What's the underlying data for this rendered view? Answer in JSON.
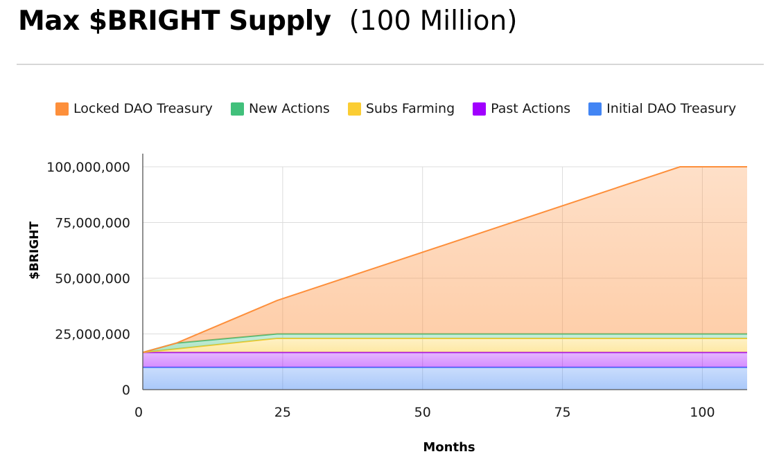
{
  "header": {
    "title": "Max $BRIGHT Supply",
    "subtitle": "(100 Million)"
  },
  "chart_data": {
    "type": "area",
    "stacked": true,
    "xlabel": "Months",
    "ylabel": "$BRIGHT",
    "xlim": [
      0,
      108
    ],
    "ylim": [
      0,
      100000000
    ],
    "x_ticks": [
      "0",
      "25",
      "50",
      "75",
      "100"
    ],
    "y_ticks": [
      "0",
      "25,000,000",
      "50,000,000",
      "75,000,000",
      "100,000,000"
    ],
    "grid": true,
    "legend_position": "top",
    "series": [
      {
        "name": "Initial DAO Treasury",
        "color": "#4285f4",
        "points": [
          [
            0,
            10000000
          ],
          [
            108,
            10000000
          ]
        ]
      },
      {
        "name": "Past Actions",
        "color": "#a100ff",
        "points": [
          [
            0,
            6700000
          ],
          [
            108,
            6700000
          ]
        ]
      },
      {
        "name": "Subs Farming",
        "color": "#fbcd33",
        "points": [
          [
            0,
            0
          ],
          [
            24,
            6300000
          ],
          [
            108,
            6300000
          ]
        ]
      },
      {
        "name": "New Actions",
        "color": "#41c07b",
        "points": [
          [
            0,
            0
          ],
          [
            6,
            2600000
          ],
          [
            24,
            2000000
          ],
          [
            108,
            2000000
          ]
        ]
      },
      {
        "name": "Locked DAO Treasury",
        "color": "#fd8f3b",
        "points": [
          [
            0,
            0
          ],
          [
            6,
            0
          ],
          [
            24,
            15000000
          ],
          [
            96,
            75000000
          ],
          [
            108,
            75000000
          ]
        ]
      }
    ]
  }
}
